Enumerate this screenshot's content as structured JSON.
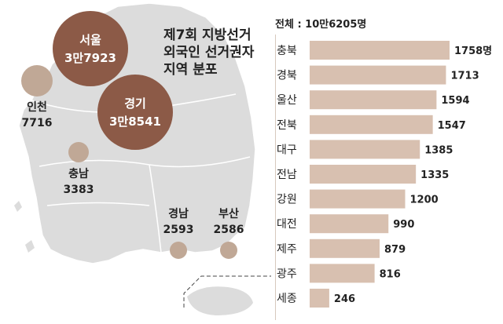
{
  "title_lines": [
    "제7회 지방선거",
    "외국인 선거권자",
    "지역 분포"
  ],
  "total_label": "전체 : 10만6205명",
  "colors": {
    "map": "#dcdcdc",
    "map_edge": "#ffffff",
    "bubble_large": "#8c5a47",
    "bubble_small": "#c0a896",
    "bar": "#d8c0b0"
  },
  "map_bubbles": [
    {
      "name": "서울",
      "value": "3만7923"
    },
    {
      "name": "경기",
      "value": "3만8541"
    },
    {
      "name": "인천",
      "value": "7716"
    },
    {
      "name": "충남",
      "value": "3383"
    },
    {
      "name": "경남",
      "value": "2593"
    },
    {
      "name": "부산",
      "value": "2586"
    }
  ],
  "chart_data": {
    "type": "bar",
    "orientation": "horizontal",
    "categories": [
      "충북",
      "경북",
      "울산",
      "전북",
      "대구",
      "전남",
      "강원",
      "대전",
      "제주",
      "광주",
      "세종"
    ],
    "values": [
      1758,
      1713,
      1594,
      1547,
      1385,
      1335,
      1200,
      990,
      879,
      816,
      246
    ],
    "value_labels": [
      "1758명",
      "1713",
      "1594",
      "1547",
      "1385",
      "1335",
      "1200",
      "990",
      "879",
      "816",
      "246"
    ],
    "title": "",
    "xlabel": "",
    "ylabel": "",
    "xlim": [
      0,
      1758
    ]
  }
}
